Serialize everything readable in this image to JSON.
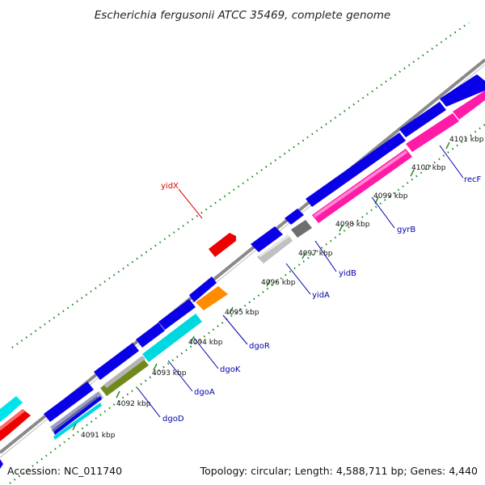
{
  "title": "Escherichia fergusonii ATCC 35469, complete genome",
  "footer": {
    "accession": "Accession: NC_011740",
    "summary": "Topology: circular; Length: 4,588,711 bp; Genes: 4,440"
  },
  "scale_labels": [
    "4091 kbp",
    "4092 kbp",
    "4093 kbp",
    "4094 kbp",
    "4095 kbp",
    "4096 kbp",
    "4097 kbp",
    "4098 kbp",
    "4099 kbp",
    "4100 kbp",
    "4101 kbp"
  ],
  "gene_labels": [
    {
      "name": "yidX",
      "color": "#dd0000"
    },
    {
      "name": "recF",
      "color": "#0000aa"
    },
    {
      "name": "gyrB",
      "color": "#0000aa"
    },
    {
      "name": "yidB",
      "color": "#0000aa"
    },
    {
      "name": "yidA",
      "color": "#0000aa"
    },
    {
      "name": "dgoR",
      "color": "#0000aa"
    },
    {
      "name": "dgoK",
      "color": "#0000aa"
    },
    {
      "name": "dgoA",
      "color": "#0000aa"
    },
    {
      "name": "dgoD",
      "color": "#0000aa"
    }
  ],
  "colors": {
    "backbone": "#8a8a8a",
    "forward_cds": "#0a00e8",
    "red_feature": "#ee0000",
    "cyan_feature": "#00d8e0",
    "magenta_feature": "#ff1aa8",
    "gray_feature": "#bdbdbd",
    "dark_gray_feature": "#6e6e6e",
    "olive_feature": "#6f8a1a",
    "orange_feature": "#ff8c00",
    "tick_color": "#1c8a1c"
  }
}
